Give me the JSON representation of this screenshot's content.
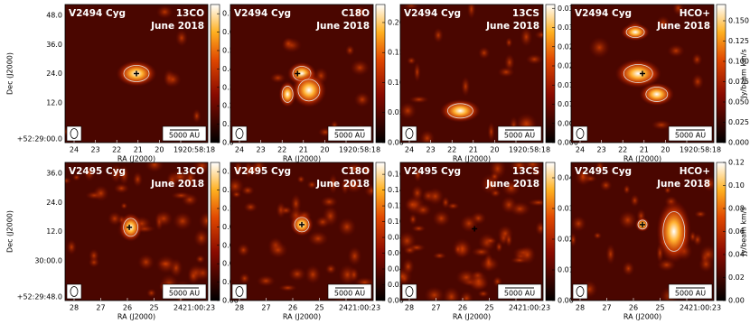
{
  "chart_data": [
    {
      "type": "map",
      "title": "V2494 Cyg",
      "subtitle": "13CO",
      "date": "June 2018",
      "scale_bar": "5000 AU",
      "xlabel": "RA (J2000)",
      "ylabel": "Dec (J2000)",
      "xticklabels": [
        "24",
        "23",
        "22",
        "21",
        "20",
        "1920:58:18"
      ],
      "yticklabels": [
        "48.0",
        "36.0",
        "24.0",
        "12.0",
        "+52:29:00.0"
      ],
      "clim": [
        0,
        0.75
      ],
      "cticks": [
        {
          "value": 0,
          "label": "0.0"
        },
        {
          "value": 0.1,
          "label": "0.1"
        },
        {
          "value": 0.2,
          "label": "0.2"
        },
        {
          "value": 0.3,
          "label": "0.3"
        },
        {
          "value": 0.4,
          "label": "0.4"
        },
        {
          "value": 0.5,
          "label": "0.5"
        },
        {
          "value": 0.6,
          "label": "0.6"
        },
        {
          "value": 0.7,
          "label": "0.7"
        }
      ]
    },
    {
      "type": "map",
      "title": "V2494 Cyg",
      "subtitle": "C18O",
      "date": "June 2018",
      "scale_bar": "5000 AU",
      "xlabel": "RA (J2000)",
      "xticklabels": [
        "24",
        "23",
        "22",
        "21",
        "20",
        "1920:58:18"
      ],
      "clim": [
        0,
        0.23
      ],
      "cticks": [
        {
          "value": 0,
          "label": "0.00"
        },
        {
          "value": 0.05,
          "label": "0.05"
        },
        {
          "value": 0.1,
          "label": "0.10"
        },
        {
          "value": 0.15,
          "label": "0.15"
        },
        {
          "value": 0.2,
          "label": "0.20"
        }
      ]
    },
    {
      "type": "map",
      "title": "V2494 Cyg",
      "subtitle": "13CS",
      "date": "June 2018",
      "scale_bar": "5000 AU",
      "xlabel": "RA (J2000)",
      "xticklabels": [
        "24",
        "23",
        "22",
        "21",
        "20",
        "1920:58:18"
      ],
      "clim": [
        0,
        0.036
      ],
      "cticks": [
        {
          "value": 0,
          "label": "0.000"
        },
        {
          "value": 0.005,
          "label": "0.005"
        },
        {
          "value": 0.01,
          "label": "0.010"
        },
        {
          "value": 0.015,
          "label": "0.015"
        },
        {
          "value": 0.02,
          "label": "0.020"
        },
        {
          "value": 0.025,
          "label": "0.025"
        },
        {
          "value": 0.03,
          "label": "0.030"
        },
        {
          "value": 0.035,
          "label": "0.035"
        }
      ]
    },
    {
      "type": "map",
      "title": "V2494 Cyg",
      "subtitle": "HCO+",
      "date": "June 2018",
      "scale_bar": "5000 AU",
      "xlabel": "RA (J2000)",
      "colorbar_label": "Jy/beam km/s",
      "xticklabels": [
        "24",
        "23",
        "22",
        "21",
        "20",
        "1920:58:18"
      ],
      "clim": [
        0,
        0.17
      ],
      "cticks": [
        {
          "value": 0,
          "label": "0.000"
        },
        {
          "value": 0.025,
          "label": "0.025"
        },
        {
          "value": 0.05,
          "label": "0.050"
        },
        {
          "value": 0.075,
          "label": "0.075"
        },
        {
          "value": 0.1,
          "label": "0.100"
        },
        {
          "value": 0.125,
          "label": "0.125"
        },
        {
          "value": 0.15,
          "label": "0.150"
        }
      ]
    },
    {
      "type": "map",
      "title": "V2495 Cyg",
      "subtitle": "13CO",
      "date": "June 2018",
      "scale_bar": "5000 AU",
      "xlabel": "RA (J2000)",
      "ylabel": "Dec (J2000)",
      "xticklabels": [
        "28",
        "27",
        "26",
        "25",
        "2421:00:23"
      ],
      "yticklabels": [
        "36.0",
        "24.0",
        "12.0",
        "30:00.0",
        "+52:29:48.0"
      ],
      "clim": [
        0,
        0.15
      ],
      "cticks": [
        {
          "value": 0,
          "label": "0.00"
        },
        {
          "value": 0.02,
          "label": "0.02"
        },
        {
          "value": 0.04,
          "label": "0.04"
        },
        {
          "value": 0.06,
          "label": "0.06"
        },
        {
          "value": 0.08,
          "label": "0.08"
        },
        {
          "value": 0.1,
          "label": "0.10"
        },
        {
          "value": 0.12,
          "label": "0.12"
        },
        {
          "value": 0.14,
          "label": "0.14"
        }
      ]
    },
    {
      "type": "map",
      "title": "V2495 Cyg",
      "subtitle": "C18O",
      "date": "June 2018",
      "scale_bar": "5000 AU",
      "xlabel": "RA (J2000)",
      "xticklabels": [
        "28",
        "27",
        "26",
        "25",
        "2421:00:23"
      ],
      "clim": [
        0,
        0.175
      ],
      "cticks": [
        {
          "value": 0,
          "label": "0.00"
        },
        {
          "value": 0.02,
          "label": "0.02"
        },
        {
          "value": 0.04,
          "label": "0.04"
        },
        {
          "value": 0.06,
          "label": "0.06"
        },
        {
          "value": 0.08,
          "label": "0.08"
        },
        {
          "value": 0.1,
          "label": "0.10"
        },
        {
          "value": 0.12,
          "label": "0.12"
        },
        {
          "value": 0.14,
          "label": "0.14"
        },
        {
          "value": 0.16,
          "label": "0.16"
        }
      ]
    },
    {
      "type": "map",
      "title": "V2495 Cyg",
      "subtitle": "13CS",
      "date": "June 2018",
      "scale_bar": "5000 AU",
      "xlabel": "RA (J2000)",
      "xticklabels": [
        "28",
        "27",
        "26",
        "25",
        "2421:00:23"
      ],
      "clim": [
        0,
        0.045
      ],
      "cticks": [
        {
          "value": 0,
          "label": "0.00"
        },
        {
          "value": 0.01,
          "label": "0.01"
        },
        {
          "value": 0.02,
          "label": "0.02"
        },
        {
          "value": 0.03,
          "label": "0.03"
        },
        {
          "value": 0.04,
          "label": "0.04"
        }
      ]
    },
    {
      "type": "map",
      "title": "V2495 Cyg",
      "subtitle": "HCO+",
      "date": "June 2018",
      "scale_bar": "5000 AU",
      "xlabel": "RA (J2000)",
      "colorbar_label": "Jy/beam km/s",
      "xticklabels": [
        "28",
        "27",
        "26",
        "25",
        "2421:00:23"
      ],
      "clim": [
        0,
        0.12
      ],
      "cticks": [
        {
          "value": 0,
          "label": "0.00"
        },
        {
          "value": 0.02,
          "label": "0.02"
        },
        {
          "value": 0.04,
          "label": "0.04"
        },
        {
          "value": 0.06,
          "label": "0.06"
        },
        {
          "value": 0.08,
          "label": "0.08"
        },
        {
          "value": 0.1,
          "label": "0.10"
        },
        {
          "value": 0.12,
          "label": "0.12"
        }
      ]
    }
  ]
}
